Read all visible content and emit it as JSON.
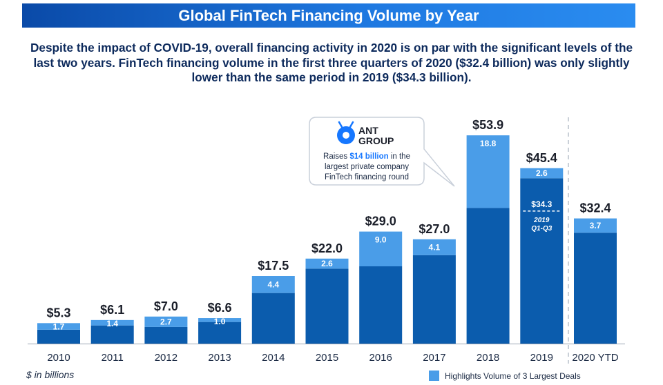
{
  "header": {
    "title": "Global FinTech Financing Volume by Year",
    "subtitle": "Despite the impact of COVID-19, overall financing activity in 2020 is on par with the significant levels of the last two years. FinTech financing volume in the first three quarters of 2020 ($32.4 billion) was only slightly lower than the same period in 2019 ($34.3 billion)."
  },
  "colors": {
    "base": "#0b5cad",
    "highlight": "#4a9de8",
    "title_bg": "#1a6ed8",
    "text": "#0d2a5c"
  },
  "chart_data": {
    "type": "bar",
    "stacked": true,
    "categories": [
      "2010",
      "2011",
      "2012",
      "2013",
      "2014",
      "2015",
      "2016",
      "2017",
      "2018",
      "2019",
      "2020 YTD"
    ],
    "totals": [
      5.3,
      6.1,
      7.0,
      6.6,
      17.5,
      22.0,
      29.0,
      27.0,
      53.9,
      45.4,
      32.4
    ],
    "total_labels": [
      "$5.3",
      "$6.1",
      "$7.0",
      "$6.6",
      "$17.5",
      "$22.0",
      "$29.0",
      "$27.0",
      "$53.9",
      "$45.4",
      "$32.4"
    ],
    "series": [
      {
        "name": "",
        "values": [
          3.6,
          4.7,
          4.3,
          5.6,
          13.1,
          19.4,
          20.0,
          22.9,
          35.1,
          42.8,
          28.7
        ]
      },
      {
        "name": "Highlights Volume of 3 Largest Deals",
        "values": [
          1.7,
          1.4,
          2.7,
          1.0,
          4.4,
          2.6,
          9.0,
          4.1,
          18.8,
          2.6,
          3.7
        ]
      }
    ],
    "highlight_labels": [
      "1.7",
      "1.4",
      "2.7",
      "1.0",
      "4.4",
      "2.6",
      "9.0",
      "4.1",
      "18.8",
      "2.6",
      "3.7"
    ],
    "ylim": [
      0,
      60
    ],
    "units": "$ in billions",
    "legend": "Highlights Volume of 3 Largest Deals",
    "annotations": {
      "q1_q3_2019_value": 34.3,
      "q1_q3_2019_label": "$34.3",
      "q1_q3_2019_caption_line1": "2019",
      "q1_q3_2019_caption_line2": "Q1-Q3",
      "callout": {
        "logo_line1": "ANT",
        "logo_line2": "GROUP",
        "text_prefix": "Raises ",
        "text_highlight": "$14 billion",
        "text_rest_line1": " in the",
        "text_line2": "largest private company",
        "text_line3": "FinTech financing round"
      }
    }
  }
}
